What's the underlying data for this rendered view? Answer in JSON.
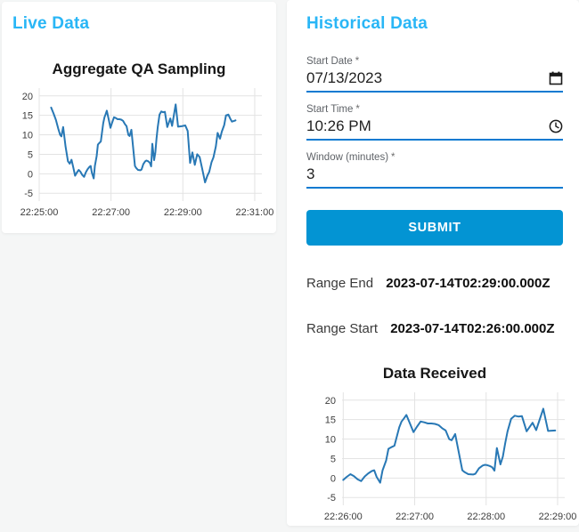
{
  "theme": {
    "accent_heading": "#29b6f6",
    "primary_button": "#0394d3",
    "field_underline": "#0b7ad1",
    "chart_line": "#2878b5",
    "chart_grid": "#e3e3e3",
    "chart_tick_text": "#3d3d3d"
  },
  "live_panel": {
    "title": "Live Data"
  },
  "historical_panel": {
    "title": "Historical Data",
    "fields": [
      {
        "label": "Start Date",
        "required_mark": "*",
        "value": "07/13/2023",
        "icon": "calendar-icon"
      },
      {
        "label": "Start Time",
        "required_mark": "*",
        "value": "10:26 PM",
        "icon": "clock-icon"
      },
      {
        "label": "Window (minutes)",
        "required_mark": "*",
        "value": "3",
        "icon": ""
      }
    ],
    "submit_label": "SUBMIT",
    "results": [
      {
        "label": "Range End",
        "value": "2023-07-14T02:29:00.000Z"
      },
      {
        "label": "Range Start",
        "value": "2023-07-14T02:26:00.000Z"
      }
    ]
  },
  "chart_data": [
    {
      "type": "line",
      "title": "Aggregate QA Sampling",
      "xlabel": "",
      "ylabel": "",
      "x_unit": "seconds since 22:25:00",
      "x_tick_labels": [
        "22:25:00",
        "22:27:00",
        "22:29:00",
        "22:31:00"
      ],
      "x_tick_seconds": [
        0,
        120,
        240,
        360
      ],
      "y_ticks": [
        -5,
        0,
        5,
        10,
        15,
        20
      ],
      "xlim": [
        0,
        372
      ],
      "ylim": [
        -7,
        22
      ],
      "grid": true,
      "legend": false,
      "x": [
        20,
        24,
        28,
        32,
        35,
        37,
        40,
        44,
        48,
        51,
        54,
        57,
        60,
        63,
        66,
        69,
        72,
        75,
        78,
        81,
        84,
        86,
        88,
        91,
        93,
        96,
        98,
        101,
        103,
        107,
        109,
        111,
        113,
        116,
        119,
        122,
        125,
        128,
        131,
        134,
        137,
        140,
        143,
        146,
        149,
        151,
        154,
        158,
        160,
        162,
        165,
        169,
        171,
        174,
        177,
        179,
        181,
        183,
        185,
        187,
        189,
        192,
        194,
        196,
        198,
        201,
        204,
        207,
        210,
        214,
        219,
        222,
        228,
        232,
        238,
        244,
        248,
        252,
        256,
        260,
        264,
        268,
        272,
        277,
        281,
        284,
        288,
        291,
        295,
        298,
        302,
        305,
        309,
        312,
        316,
        319,
        322,
        326,
        328
      ],
      "y": [
        17,
        15.5,
        13.8,
        11.5,
        10,
        9.6,
        12,
        7,
        3.2,
        2.6,
        3.6,
        1.6,
        -0.5,
        0.3,
        1,
        0.5,
        -0.3,
        -0.8,
        0.4,
        1.2,
        1.8,
        2,
        0.3,
        -1.2,
        2,
        4.5,
        7.5,
        8,
        8.3,
        13,
        14.5,
        15.3,
        16.2,
        14,
        11.8,
        13.2,
        14.5,
        14.3,
        14,
        14,
        13.9,
        13.6,
        12.8,
        12.2,
        10,
        9.7,
        11.3,
        5,
        2,
        1.5,
        1,
        0.9,
        1.1,
        2.5,
        3.2,
        3.4,
        3.3,
        3.1,
        2.8,
        1.9,
        7.7,
        3.5,
        5.5,
        9,
        12,
        15.2,
        16,
        15.8,
        15.9,
        12,
        14.2,
        12.3,
        17.8,
        12.1,
        12.2,
        12.4,
        11,
        2.8,
        5.5,
        2.3,
        5,
        4.3,
        1.5,
        -2.2,
        -0.5,
        0.5,
        3,
        4.2,
        7,
        10.5,
        9,
        10.8,
        12.5,
        15,
        15.2,
        14.2,
        13.4,
        13.6,
        13.7
      ]
    },
    {
      "type": "line",
      "title": "Data Received",
      "xlabel": "",
      "ylabel": "",
      "x_unit": "seconds since 22:25:00",
      "x_tick_labels": [
        "22:26:00",
        "22:27:00",
        "22:28:00",
        "22:29:00"
      ],
      "x_tick_seconds": [
        60,
        120,
        180,
        240
      ],
      "y_ticks": [
        -5,
        0,
        5,
        10,
        15,
        20
      ],
      "xlim": [
        59,
        246
      ],
      "ylim": [
        -7,
        22
      ],
      "grid": true,
      "legend": false,
      "x": [
        60,
        63,
        66,
        69,
        72,
        75,
        78,
        81,
        84,
        86,
        88,
        91,
        93,
        96,
        98,
        101,
        103,
        107,
        109,
        111,
        113,
        116,
        119,
        122,
        125,
        128,
        131,
        134,
        137,
        140,
        143,
        146,
        149,
        151,
        154,
        158,
        160,
        162,
        165,
        169,
        171,
        174,
        177,
        179,
        181,
        183,
        185,
        187,
        189,
        192,
        194,
        196,
        198,
        201,
        204,
        207,
        210,
        214,
        219,
        222,
        228,
        232,
        238
      ],
      "y": [
        -0.5,
        0.3,
        1,
        0.5,
        -0.3,
        -0.8,
        0.4,
        1.2,
        1.8,
        2,
        0.3,
        -1.2,
        2,
        4.5,
        7.5,
        8,
        8.3,
        13,
        14.5,
        15.3,
        16.2,
        14,
        11.8,
        13.2,
        14.5,
        14.3,
        14,
        14,
        13.9,
        13.6,
        12.8,
        12.2,
        10,
        9.7,
        11.3,
        5,
        2,
        1.5,
        1,
        0.9,
        1.1,
        2.5,
        3.2,
        3.4,
        3.3,
        3.1,
        2.8,
        1.9,
        7.7,
        3.5,
        5.5,
        9,
        12,
        15.2,
        16,
        15.8,
        15.9,
        12,
        14.2,
        12.3,
        17.8,
        12.1,
        12.2
      ]
    }
  ]
}
